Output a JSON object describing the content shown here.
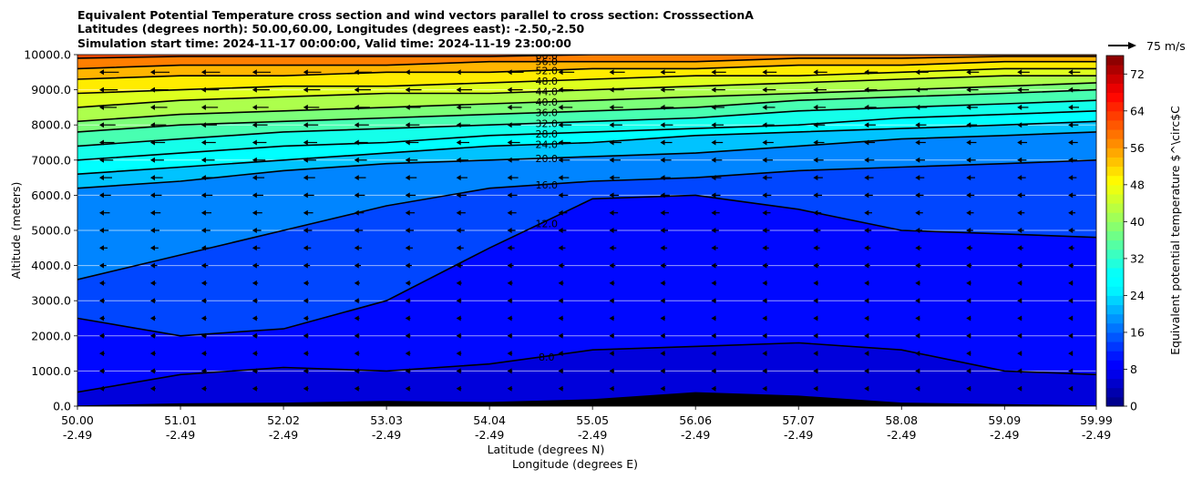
{
  "chart_data": {
    "type": "heatmap",
    "title_lines": [
      "Equivalent Potential Temperature cross section and wind vectors parallel to cross section: CrosssectionA",
      "Latitudes (degrees north): 50.00,60.00, Longitudes (degrees east): -2.50,-2.50",
      "Simulation start time: 2024-11-17 00:00:00, Valid time: 2024-11-19 23:00:00"
    ],
    "ylabel": "Altitude (meters)",
    "xlabel": "Latitude (degrees N)",
    "xlabel2": "Longitude (degrees E)",
    "ylim": [
      0,
      10000
    ],
    "xlim": [
      50.0,
      59.99
    ],
    "y_ticks": [
      "0.0",
      "1000.0",
      "2000.0",
      "3000.0",
      "4000.0",
      "5000.0",
      "6000.0",
      "7000.0",
      "8000.0",
      "9000.0",
      "10000.0"
    ],
    "x_ticks": [
      {
        "lat": "50.00",
        "lon": "-2.49"
      },
      {
        "lat": "51.01",
        "lon": "-2.49"
      },
      {
        "lat": "52.02",
        "lon": "-2.49"
      },
      {
        "lat": "53.03",
        "lon": "-2.49"
      },
      {
        "lat": "54.04",
        "lon": "-2.49"
      },
      {
        "lat": "55.05",
        "lon": "-2.49"
      },
      {
        "lat": "56.06",
        "lon": "-2.49"
      },
      {
        "lat": "57.07",
        "lon": "-2.49"
      },
      {
        "lat": "58.08",
        "lon": "-2.49"
      },
      {
        "lat": "59.09",
        "lon": "-2.49"
      },
      {
        "lat": "59.99",
        "lon": "-2.49"
      }
    ],
    "grid": "horizontal",
    "colorbar": {
      "label": "Equivalent potential temperature $^\\circ$C",
      "min": 0,
      "max": 76,
      "step": 2,
      "ticks": [
        "0",
        "8",
        "16",
        "24",
        "32",
        "40",
        "48",
        "56",
        "64",
        "72"
      ]
    },
    "quiver_key": "75 m/s",
    "contour_labels": [
      "60.0",
      "56.0",
      "52.0",
      "48.0",
      "44.0",
      "40.0",
      "36.0",
      "32.0",
      "28.0",
      "24.0",
      "20.0",
      "12.0",
      "8.0"
    ],
    "level_heights": [
      {
        "level": 8,
        "heights": [
          400,
          900,
          1100,
          1000,
          1200,
          1600,
          1700,
          1800,
          1600,
          1000,
          900
        ]
      },
      {
        "level": 12,
        "heights": [
          2500,
          2000,
          2200,
          3000,
          4500,
          5900,
          6000,
          5600,
          5000,
          4900,
          4800
        ]
      },
      {
        "level": 16,
        "heights": [
          3600,
          4300,
          5000,
          5700,
          6200,
          6400,
          6500,
          6700,
          6800,
          6900,
          7000
        ]
      },
      {
        "level": 20,
        "heights": [
          6200,
          6400,
          6700,
          6900,
          7000,
          7100,
          7200,
          7400,
          7600,
          7700,
          7800
        ]
      },
      {
        "level": 24,
        "heights": [
          6600,
          6800,
          7000,
          7200,
          7400,
          7500,
          7700,
          7800,
          7900,
          8000,
          8100
        ]
      },
      {
        "level": 28,
        "heights": [
          7000,
          7200,
          7400,
          7500,
          7700,
          7800,
          7900,
          8000,
          8200,
          8300,
          8400
        ]
      },
      {
        "level": 32,
        "heights": [
          7400,
          7600,
          7800,
          7900,
          8000,
          8100,
          8200,
          8400,
          8500,
          8600,
          8700
        ]
      },
      {
        "level": 36,
        "heights": [
          7800,
          8000,
          8100,
          8200,
          8300,
          8400,
          8500,
          8700,
          8800,
          8900,
          9000
        ]
      },
      {
        "level": 40,
        "heights": [
          8100,
          8300,
          8400,
          8500,
          8600,
          8700,
          8800,
          8900,
          9000,
          9100,
          9200
        ]
      },
      {
        "level": 44,
        "heights": [
          8500,
          8700,
          8800,
          8900,
          8900,
          9000,
          9100,
          9200,
          9300,
          9400,
          9400
        ]
      },
      {
        "level": 48,
        "heights": [
          8900,
          9000,
          9100,
          9100,
          9200,
          9300,
          9400,
          9400,
          9500,
          9600,
          9600
        ]
      },
      {
        "level": 52,
        "heights": [
          9300,
          9400,
          9400,
          9500,
          9500,
          9600,
          9600,
          9700,
          9700,
          9800,
          9800
        ]
      },
      {
        "level": 56,
        "heights": [
          9600,
          9700,
          9700,
          9700,
          9800,
          9800,
          9800,
          9900,
          9900,
          9950,
          9950
        ]
      },
      {
        "level": 60,
        "heights": [
          9900,
          9950,
          9950,
          9950,
          9950,
          10000,
          10000,
          10000,
          10000,
          10000,
          10000
        ]
      }
    ],
    "terrain_heights": [
      20,
      80,
      100,
      150,
      120,
      200,
      400,
      300,
      100,
      60,
      20
    ],
    "wind_arrow_rows_m": [
      9500,
      9000,
      8500,
      8000,
      7500,
      7000,
      6500,
      6000,
      5500,
      5000,
      4500,
      4000,
      3500,
      3000,
      2500,
      2000,
      1500,
      1000,
      500
    ]
  }
}
